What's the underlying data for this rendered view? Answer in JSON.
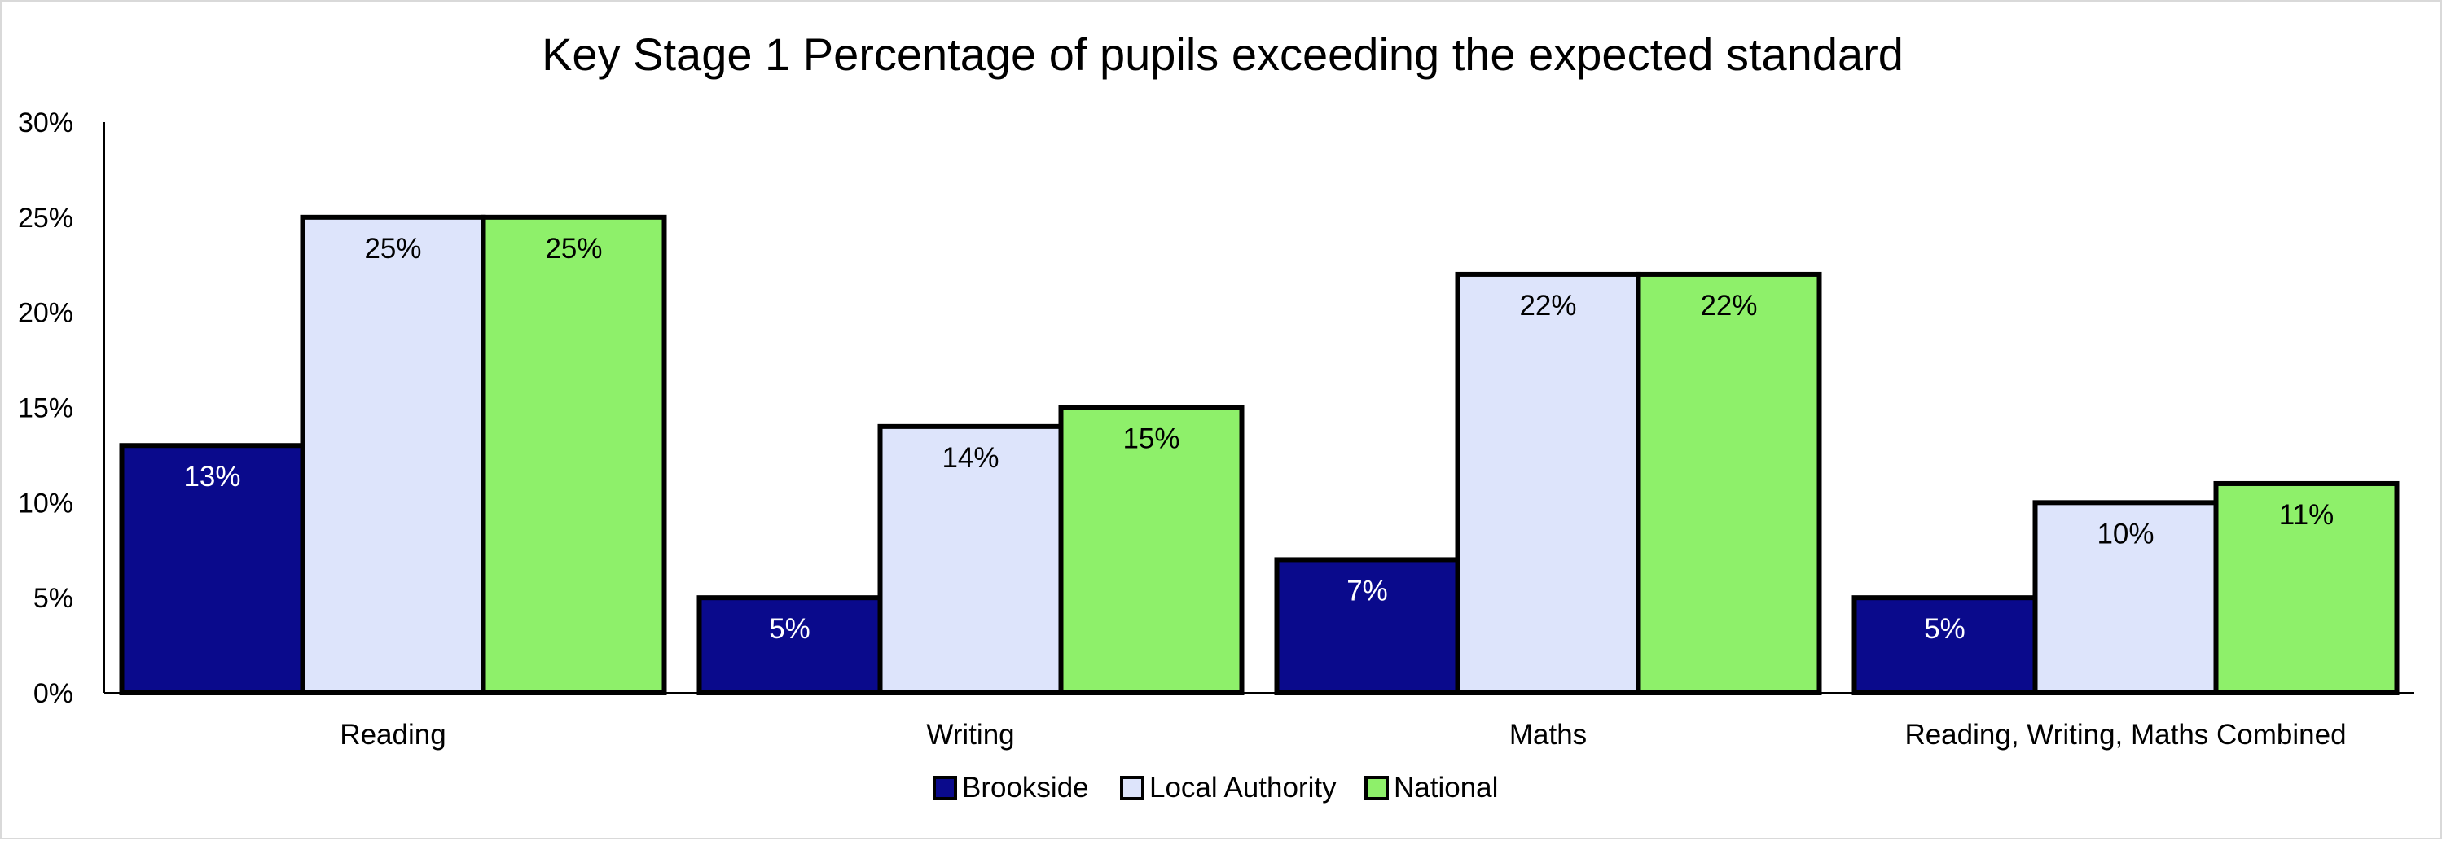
{
  "chart_data": {
    "type": "bar",
    "title": "Key Stage 1 Percentage of pupils exceeding the expected standard",
    "xlabel": "",
    "ylabel": "",
    "categories": [
      "Reading",
      "Writing",
      "Maths",
      "Reading, Writing, Maths Combined"
    ],
    "series": [
      {
        "name": "Brookside",
        "values": [
          13,
          5,
          7,
          5
        ],
        "color": "#0a0a8c",
        "label_color": "#ffffff"
      },
      {
        "name": "Local Authority",
        "values": [
          25,
          14,
          22,
          10
        ],
        "color": "#dde4fb",
        "label_color": "#000000"
      },
      {
        "name": "National",
        "values": [
          25,
          15,
          22,
          11
        ],
        "color": "#8ef06a",
        "label_color": "#000000"
      }
    ],
    "value_suffix": "%",
    "ylim": [
      0,
      30
    ],
    "yticks": [
      0,
      5,
      10,
      15,
      20,
      25,
      30
    ],
    "grid": false,
    "legend_position": "bottom",
    "bar_outline_color": "#000000"
  }
}
